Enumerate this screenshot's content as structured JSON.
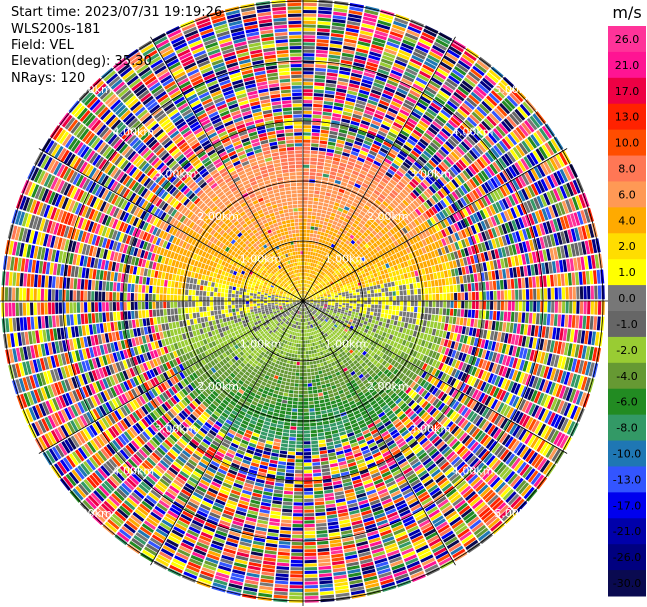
{
  "header": {
    "start_time": "Start time: 2023/07/31 19:19:26",
    "instrument": "WLS200s-181",
    "field": "Field: VEL",
    "elevation": "Elevation(deg): 35.30",
    "nrays": "NRays: 120"
  },
  "chart_data": {
    "type": "heatmap",
    "projection": "polar-ppi",
    "field": "VEL",
    "units": "m/s",
    "nrays": 120,
    "elevation_deg": 35.3,
    "range_rings_km": [
      1.0,
      2.0,
      3.0,
      4.0,
      5.0
    ],
    "ring_labels": [
      "1.00km",
      "2.00km",
      "3.00km",
      "4.00km",
      "5.00km"
    ],
    "colorbar": {
      "label": "m/s",
      "ticks": [
        "26.0",
        "21.0",
        "17.0",
        "13.0",
        "10.0",
        "8.0",
        "6.0",
        "4.0",
        "2.0",
        "1.0",
        "0.0",
        "-1.0",
        "-2.0",
        "-4.0",
        "-6.0",
        "-8.0",
        "-10.0",
        "-13.0",
        "-17.0",
        "-21.0",
        "-26.0",
        "-30.0"
      ],
      "colors": [
        "#ff3399",
        "#ff1493",
        "#ee0044",
        "#ff2200",
        "#ff4d00",
        "#ff7755",
        "#ff9955",
        "#ffaa00",
        "#ffdd00",
        "#ffff00",
        "#777777",
        "#666666",
        "#99cc33",
        "#669933",
        "#228b22",
        "#339966",
        "#1f77b4",
        "#3355ff",
        "#0000ee",
        "#0000aa",
        "#000080",
        "#0a0a50"
      ]
    },
    "velocity_pattern": {
      "north_half": "positive (yellow/orange, 0 to 6 m/s)",
      "south_half": "negative (green/blue, -1 to -10 m/s)",
      "outer_ranges": "noise (random colors beyond ~2.3 km)"
    }
  }
}
